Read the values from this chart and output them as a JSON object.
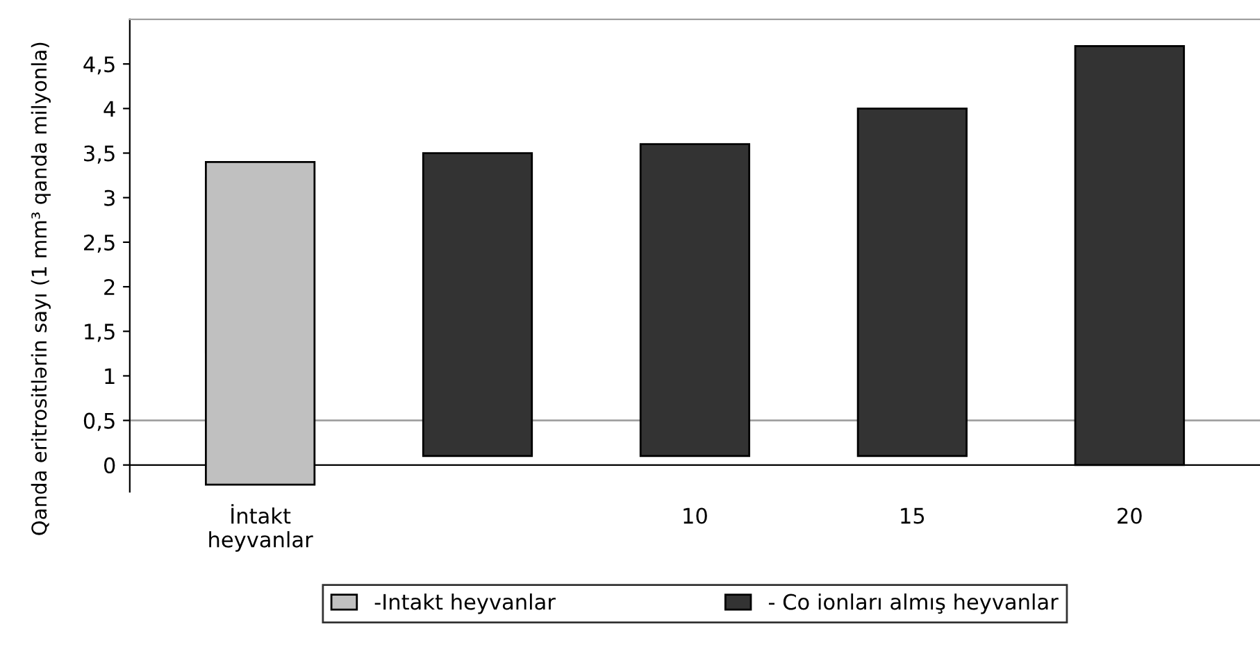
{
  "chart_data": {
    "type": "bar",
    "ylabel": "Qanda eritrositlərin sayı (1 mm³ qanda milyonla)",
    "categories": [
      "İntakt\nheyvanlar",
      null,
      "10",
      "15",
      "20"
    ],
    "series": [
      {
        "name": "-Intakt heyvanlar",
        "color": "#c0c0c0",
        "values": [
          3.62,
          null,
          null,
          null,
          null
        ],
        "base": [
          -0.22,
          null,
          null,
          null,
          null
        ]
      },
      {
        "name": "- Co ionları almış heyvanlar",
        "color": "#333333",
        "values": [
          null,
          3.4,
          3.5,
          3.9,
          4.7
        ],
        "base": [
          null,
          0.1,
          0.1,
          0.1,
          0
        ]
      }
    ],
    "ylim": [
      -0.3,
      5
    ],
    "yticks": [
      0,
      {
        "value": 0.5,
        "label": "0,5"
      },
      1,
      {
        "value": 1.5,
        "label": "1,5"
      },
      2,
      {
        "value": 2.5,
        "label": "2,5"
      },
      3,
      {
        "value": 3.5,
        "label": "3,5"
      },
      4,
      {
        "value": 4.5,
        "label": "4,5"
      }
    ],
    "ref_lines": [
      {
        "axis": "y",
        "value": 0.5,
        "color": "#a0a0a0"
      }
    ],
    "grid": false,
    "legend": "bottom"
  }
}
